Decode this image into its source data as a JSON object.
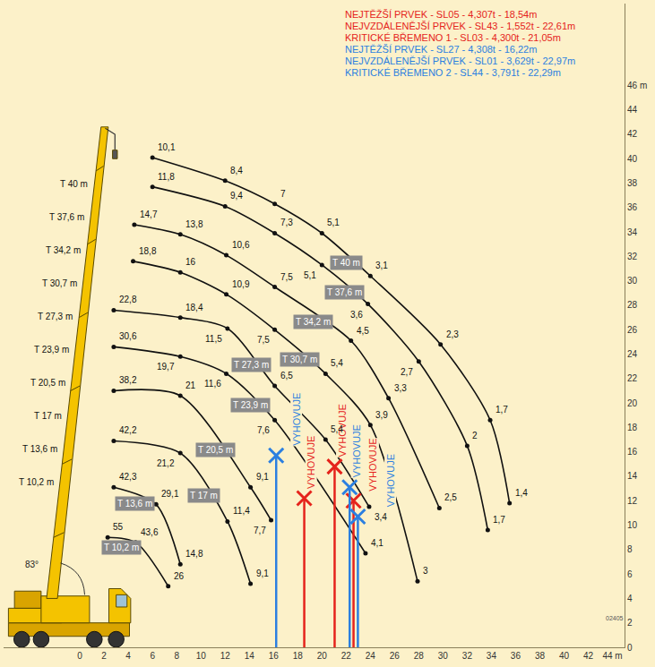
{
  "chart_data": {
    "type": "line",
    "xlim": [
      -6.3,
      45
    ],
    "ylim": [
      0,
      52.7
    ],
    "xticks": [
      0,
      2,
      4,
      6,
      8,
      10,
      12,
      14,
      16,
      18,
      20,
      22,
      24,
      26,
      28,
      30,
      32,
      34,
      36,
      38,
      40,
      42,
      {
        "value": 44,
        "label": "44 m"
      }
    ],
    "yticks": [
      0,
      2,
      4,
      6,
      8,
      10,
      12,
      14,
      16,
      18,
      20,
      22,
      24,
      26,
      28,
      30,
      32,
      34,
      36,
      38,
      40,
      42,
      44,
      {
        "value": 46,
        "label": "46 m"
      }
    ],
    "grid": false,
    "angle_label": "83°",
    "code_label": "02405",
    "series": [
      {
        "name": "T 40 m",
        "color": "#111111",
        "marker": "circle",
        "x": [
          6.0,
          12.0,
          16.1,
          20.0,
          24.0,
          29.8,
          33.9,
          35.5
        ],
        "values": [
          40.1,
          38.2,
          36.3,
          33.9,
          30.4,
          24.8,
          18.6,
          11.8
        ],
        "load": [
          10.1,
          8.4,
          7,
          5.1,
          3.1,
          2.3,
          1.7,
          1.4
        ],
        "load_labels": [
          "10,1",
          "8,4",
          "7",
          "5,1",
          "3,1",
          "2,3",
          "1,7",
          "1,4"
        ]
      },
      {
        "name": "T 37,6 m",
        "color": "#111111",
        "marker": "circle",
        "x": [
          6.0,
          12.0,
          16.1,
          20.0,
          23.8,
          28.0,
          32.0,
          33.7
        ],
        "values": [
          37.7,
          36.1,
          33.9,
          31.3,
          28.1,
          23.4,
          16.5,
          9.6
        ],
        "load": [
          11.8,
          9.4,
          7.3,
          5.1,
          3.6,
          2.7,
          2,
          1.7
        ],
        "load_labels": [
          "11,8",
          "9,4",
          "7,3",
          "5,1",
          "3,6",
          "2,7",
          "2",
          "1,7"
        ]
      },
      {
        "name": "T 34,2 m",
        "color": "#111111",
        "marker": "circle",
        "x": [
          4.5,
          8.3,
          12.1,
          16.1,
          22.4,
          25.5,
          29.7
        ],
        "values": [
          34.6,
          33.8,
          32.1,
          29.5,
          25.1,
          20.4,
          11.4
        ],
        "load": [
          14.7,
          13.8,
          10.6,
          7.5,
          4.5,
          3.3,
          2.5
        ],
        "load_labels": [
          "14,7",
          "13,8",
          "10,6",
          "7,5",
          "4,5",
          "3,3",
          "2,5"
        ]
      },
      {
        "name": "T 30,7 m",
        "color": "#111111",
        "marker": "circle",
        "x": [
          4.4,
          8.3,
          12.1,
          16.1,
          20.3,
          24.0,
          27.9
        ],
        "values": [
          31.6,
          30.7,
          28.9,
          26.0,
          22.4,
          18.2,
          5.4
        ],
        "load": [
          18.8,
          16,
          10.9,
          7.5,
          5.4,
          3.9,
          3
        ],
        "load_labels": [
          "18,8",
          "16",
          "10,9",
          "7,5",
          "5,4",
          "3,9",
          "3"
        ]
      },
      {
        "name": "T 27,3 m",
        "color": "#111111",
        "marker": "circle",
        "x": [
          2.8,
          8.3,
          12.2,
          16.1,
          20.3,
          23.9
        ],
        "values": [
          27.6,
          27.0,
          26.1,
          21.4,
          17.0,
          11.5
        ],
        "load": [
          22.8,
          18.4,
          11.5,
          6.5,
          5.4,
          3.4
        ],
        "load_labels": [
          "22,8",
          "18,4",
          "11,5",
          "6,5",
          "5,4",
          "3,4"
        ]
      },
      {
        "name": "T 23,9 m",
        "color": "#111111",
        "marker": "circle",
        "x": [
          2.8,
          8.3,
          12.1,
          16.1,
          23.6
        ],
        "values": [
          24.6,
          23.8,
          22.4,
          18.6,
          7.7
        ],
        "load": [
          30.6,
          19.7,
          11.6,
          7.6,
          4.1
        ],
        "load_labels": [
          "30,6",
          "19,7",
          "11,6",
          "7,6",
          "4,1"
        ]
      },
      {
        "name": "T 20,5 m",
        "color": "#111111",
        "marker": "circle",
        "x": [
          2.8,
          8.3,
          14.1,
          15.8
        ],
        "values": [
          21.0,
          20.6,
          13.1,
          10.4
        ],
        "load": [
          38.2,
          21,
          9.1,
          7.7
        ],
        "load_labels": [
          "38,2",
          "21",
          "9,1",
          "7,7"
        ]
      },
      {
        "name": "T 17 m",
        "color": "#111111",
        "marker": "circle",
        "x": [
          2.8,
          8.3,
          12.2,
          14.1
        ],
        "values": [
          16.9,
          15.9,
          10.3,
          5.2
        ],
        "load": [
          42.2,
          21.2,
          11.4,
          9.1
        ],
        "load_labels": [
          "42,2",
          "21,2",
          "11,4",
          "9,1"
        ]
      },
      {
        "name": "T 13,6 m",
        "color": "#111111",
        "marker": "circle",
        "x": [
          2.8,
          6.3,
          8.3
        ],
        "values": [
          13.1,
          11.7,
          6.8
        ],
        "load": [
          42.3,
          29.1,
          14.8
        ],
        "load_labels": [
          "42,3",
          "29,1",
          "14,8"
        ]
      },
      {
        "name": "T 10,2 m",
        "color": "#111111",
        "marker": "circle",
        "x": [
          2.3,
          4.6,
          7.3
        ],
        "values": [
          9.0,
          8.6,
          5.0
        ],
        "load": [
          55,
          43.6,
          26
        ],
        "load_labels": [
          "55",
          "43,6",
          "26"
        ]
      }
    ],
    "elements": [
      {
        "text": "NEJTĚŽŠÍ PRVEK - SL05 - 4,307t - 18,54m",
        "color": "#e5231b",
        "radius": 18.54,
        "height": 12.2,
        "status": "VYHOVUJE",
        "marker": "x",
        "line_style": "solid"
      },
      {
        "text": "NEJVZDÁLENĚJŠÍ PRVEK - SL43 - 1,552t - 22,61m",
        "color": "#e5231b",
        "radius": 22.61,
        "height": 12.0,
        "status": "VYHOVUJE",
        "marker": "x",
        "line_style": "solid"
      },
      {
        "text": "KRITICKÉ BŘEMENO 1 - SL03 - 4,300t - 21,05m",
        "color": "#e5231b",
        "radius": 21.05,
        "height": 14.8,
        "status": "VYHOVUJE",
        "marker": "x",
        "line_style": "solid"
      },
      {
        "text": "NEJTĚŽŠÍ PRVEK - SL27 - 4,308t - 16,22m",
        "color": "#2b7fe0",
        "radius": 16.22,
        "height": 15.7,
        "status": "VYHOVUJE",
        "marker": "x",
        "line_style": "solid"
      },
      {
        "text": "NEJVZDÁLENĚJŠÍ PRVEK - SL01 - 3,629t - 22,97m",
        "color": "#2b7fe0",
        "radius": 22.97,
        "height": 10.7,
        "status": "VYHOVUJE",
        "marker": "x",
        "line_style": "solid"
      },
      {
        "text": "KRITICKÉ BŘEMENO 2 - SL44 - 3,791t - 22,29m",
        "color": "#2b7fe0",
        "radius": 22.29,
        "height": 13.1,
        "status": "VYHOVUJE",
        "marker": "x",
        "line_style": "solid"
      }
    ]
  }
}
